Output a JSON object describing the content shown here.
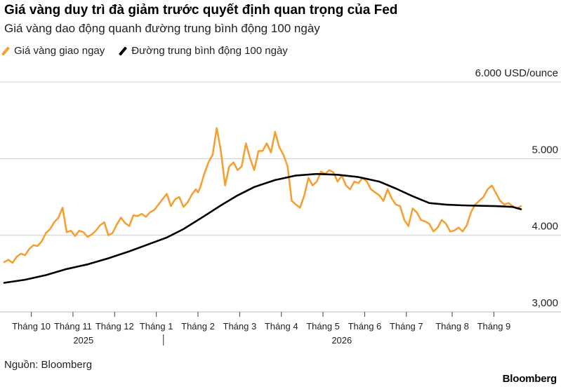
{
  "header": {
    "title": "Giá vàng duy trì đà giảm trước quyết định quan trọng của Fed",
    "subtitle": "Giá vàng dao động quanh đường trung bình động 100 ngày"
  },
  "footer": {
    "source": "Nguồn: Bloomberg",
    "brand": "Bloomberg"
  },
  "chart_data": {
    "type": "line",
    "title": "Giá vàng duy trì đà giảm trước quyết định quan trọng của Fed",
    "subtitle": "Giá vàng dao động quanh đường trung bình động 100 ngày",
    "unit_label": "6.000 USD/ounce",
    "ylim": [
      3000,
      6000
    ],
    "y_ticks": [
      3000,
      4000,
      5000,
      6000
    ],
    "y_tick_labels": [
      "3,000",
      "4.000",
      "5.000",
      "6.000 USD/ounce"
    ],
    "xlim": [
      0,
      12.4
    ],
    "x_ticks": [
      0.65,
      1.65,
      2.65,
      3.65,
      4.65,
      5.65,
      6.65,
      7.65,
      8.65,
      9.65,
      10.75,
      11.75
    ],
    "x_tick_labels": [
      "Tháng 10",
      "Tháng 11",
      "Tháng 12",
      "Tháng 1",
      "Tháng 2",
      "Tháng 3",
      "Tháng 4",
      "Tháng 5",
      "Tháng 6",
      "Tháng 7",
      "Tháng 8",
      "Tháng 9"
    ],
    "year_labels": [
      {
        "x": 1.9,
        "label": "2025"
      },
      {
        "x": 8.1,
        "label": "2026"
      }
    ],
    "year_divider_x": 3.82,
    "grid": true,
    "legend_position": "top-left",
    "series": [
      {
        "name": "Giá vàng giao ngay",
        "color": "#f5a035",
        "x": [
          0,
          0.1,
          0.2,
          0.3,
          0.4,
          0.5,
          0.6,
          0.7,
          0.8,
          0.9,
          1.0,
          1.1,
          1.2,
          1.3,
          1.4,
          1.5,
          1.6,
          1.7,
          1.8,
          1.9,
          2.0,
          2.1,
          2.2,
          2.3,
          2.4,
          2.5,
          2.6,
          2.7,
          2.8,
          2.9,
          3.0,
          3.1,
          3.2,
          3.3,
          3.4,
          3.5,
          3.6,
          3.7,
          3.8,
          3.9,
          4.0,
          4.1,
          4.2,
          4.3,
          4.4,
          4.5,
          4.6,
          4.65,
          4.7,
          4.8,
          4.9,
          5.0,
          5.1,
          5.2,
          5.3,
          5.4,
          5.5,
          5.6,
          5.7,
          5.8,
          5.9,
          6.0,
          6.1,
          6.2,
          6.3,
          6.4,
          6.5,
          6.6,
          6.7,
          6.8,
          6.9,
          7.0,
          7.1,
          7.2,
          7.3,
          7.4,
          7.5,
          7.6,
          7.7,
          7.8,
          7.9,
          8.0,
          8.1,
          8.2,
          8.3,
          8.4,
          8.5,
          8.6,
          8.7,
          8.8,
          8.9,
          9.0,
          9.1,
          9.2,
          9.3,
          9.4,
          9.5,
          9.6,
          9.7,
          9.8,
          9.9,
          10.0,
          10.1,
          10.2,
          10.3,
          10.4,
          10.5,
          10.6,
          10.7,
          10.8,
          10.9,
          11.0,
          11.1,
          11.2,
          11.3,
          11.4,
          11.5,
          11.6,
          11.7,
          11.8,
          11.9,
          12.0,
          12.1,
          12.2,
          12.3,
          12.4
        ],
        "values": [
          3650,
          3680,
          3640,
          3720,
          3760,
          3740,
          3820,
          3870,
          3860,
          3920,
          4030,
          4080,
          4170,
          4230,
          4360,
          4040,
          4060,
          3990,
          4060,
          4040,
          3980,
          4010,
          4060,
          4130,
          4170,
          4000,
          4030,
          4140,
          4230,
          4160,
          4120,
          4260,
          4250,
          4280,
          4240,
          4300,
          4330,
          4400,
          4470,
          4540,
          4380,
          4470,
          4500,
          4370,
          4430,
          4530,
          4600,
          4560,
          4620,
          4800,
          4950,
          5050,
          5400,
          5100,
          4650,
          4900,
          4950,
          4850,
          4900,
          5200,
          5000,
          4850,
          5100,
          5100,
          5200,
          5080,
          5350,
          5150,
          5050,
          4900,
          4450,
          4400,
          4360,
          4520,
          4750,
          4650,
          4700,
          4830,
          4800,
          4850,
          4820,
          4700,
          4780,
          4650,
          4600,
          4700,
          4680,
          4750,
          4700,
          4600,
          4560,
          4520,
          4450,
          4600,
          4480,
          4400,
          4380,
          4200,
          4120,
          4350,
          4300,
          4200,
          4180,
          4150,
          4050,
          4100,
          4200,
          4150,
          4050,
          4060,
          4100,
          4050,
          4130,
          4300,
          4400,
          4450,
          4500,
          4600,
          4650,
          4550,
          4450,
          4400,
          4420,
          4380,
          4350,
          4380
        ],
        "line_width": 2.6
      },
      {
        "name": "Đường trung bình động 100 ngày",
        "color": "#000000",
        "x": [
          0,
          0.5,
          1.0,
          1.5,
          2.0,
          2.5,
          3.0,
          3.5,
          3.9,
          4.3,
          4.8,
          5.2,
          5.6,
          6.0,
          6.5,
          7.0,
          7.5,
          8.0,
          8.5,
          9.0,
          9.4,
          9.8,
          10.2,
          10.6,
          11.0,
          11.4,
          11.8,
          12.2,
          12.4
        ],
        "values": [
          3380,
          3420,
          3480,
          3560,
          3620,
          3700,
          3790,
          3890,
          3970,
          4080,
          4250,
          4390,
          4520,
          4630,
          4720,
          4780,
          4800,
          4790,
          4760,
          4700,
          4610,
          4510,
          4420,
          4400,
          4390,
          4385,
          4380,
          4370,
          4340
        ],
        "line_width": 2.6
      }
    ]
  }
}
